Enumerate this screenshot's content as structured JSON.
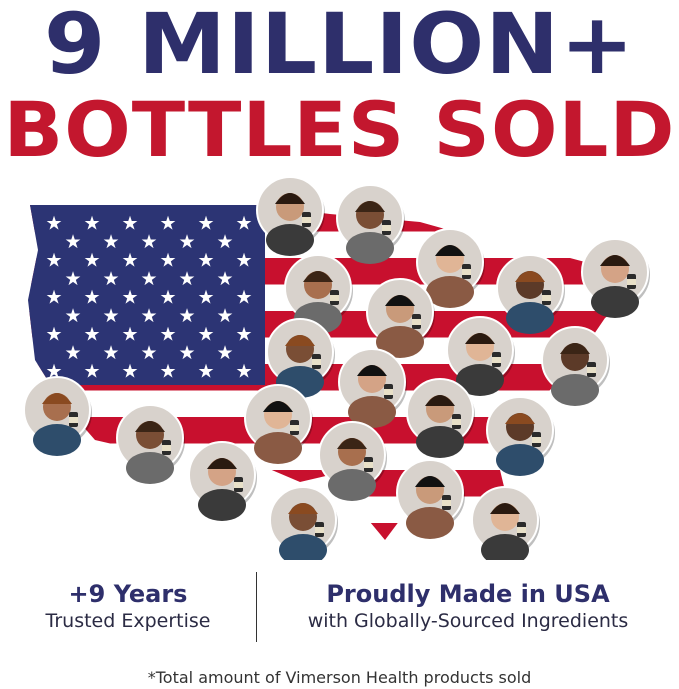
{
  "headline": {
    "line1": "9 MILLION+",
    "line2": "BOTTLES SOLD"
  },
  "colors": {
    "navy": "#2e2f6b",
    "red": "#c3172e",
    "flag_blue": "#2c3474",
    "flag_red": "#c8102e"
  },
  "stats": [
    {
      "title": "+9 Years",
      "subtitle": "Trusted Expertise"
    },
    {
      "title": "Proudly Made in USA",
      "subtitle": "with Globally-Sourced Ingredients"
    }
  ],
  "footnote": "*Total amount of Vimerson Health products sold"
}
